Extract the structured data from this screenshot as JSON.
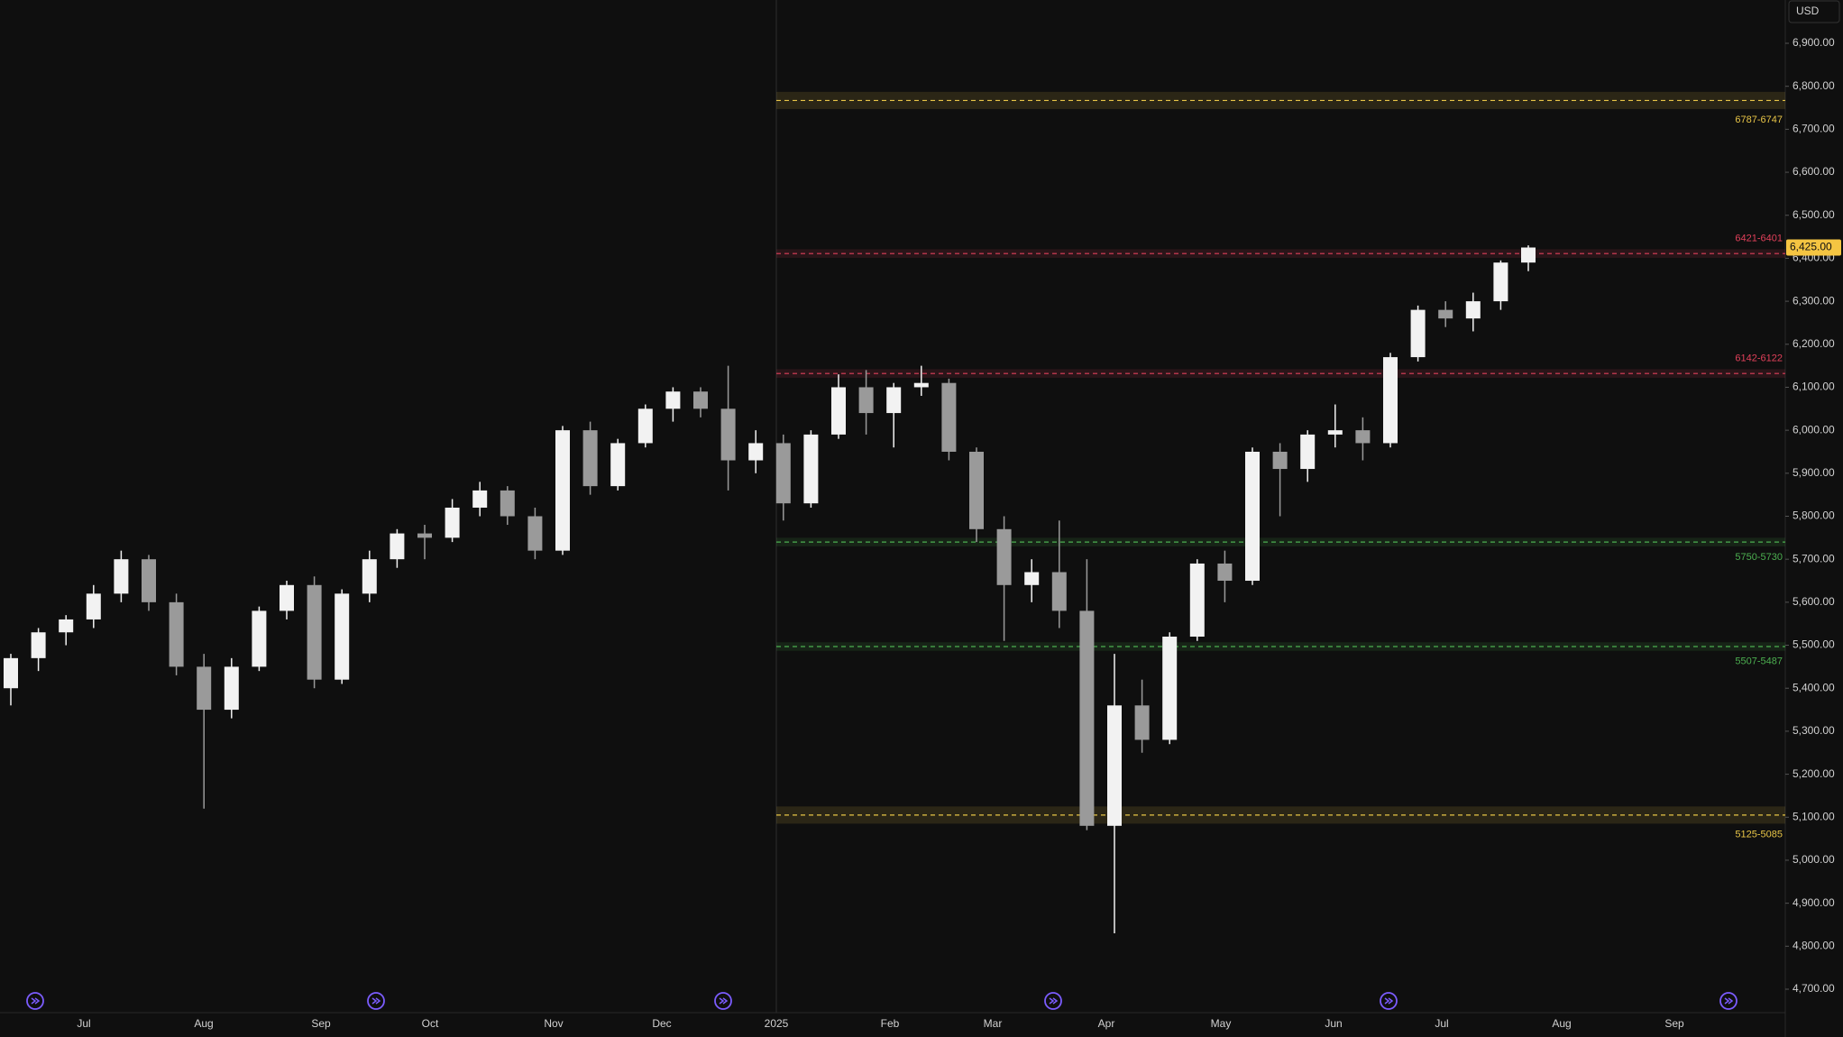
{
  "chart_data": {
    "type": "candlestick",
    "currency": "USD",
    "last_price": {
      "value": 6425,
      "label": "6,425.00"
    },
    "ylim": [
      4700,
      6900
    ],
    "yticks": [
      {
        "value": 4700,
        "label": "4,700.00"
      },
      {
        "value": 4800,
        "label": "4,800.00"
      },
      {
        "value": 4900,
        "label": "4,900.00"
      },
      {
        "value": 5000,
        "label": "5,000.00"
      },
      {
        "value": 5100,
        "label": "5,100.00"
      },
      {
        "value": 5200,
        "label": "5,200.00"
      },
      {
        "value": 5300,
        "label": "5,300.00"
      },
      {
        "value": 5400,
        "label": "5,400.00"
      },
      {
        "value": 5500,
        "label": "5,500.00"
      },
      {
        "value": 5600,
        "label": "5,600.00"
      },
      {
        "value": 5700,
        "label": "5,700.00"
      },
      {
        "value": 5800,
        "label": "5,800.00"
      },
      {
        "value": 5900,
        "label": "5,900.00"
      },
      {
        "value": 6000,
        "label": "6,000.00"
      },
      {
        "value": 6100,
        "label": "6,100.00"
      },
      {
        "value": 6200,
        "label": "6,200.00"
      },
      {
        "value": 6300,
        "label": "6,300.00"
      },
      {
        "value": 6400,
        "label": "6,400.00"
      },
      {
        "value": 6500,
        "label": "6,500.00"
      },
      {
        "value": 6600,
        "label": "6,600.00"
      },
      {
        "value": 6700,
        "label": "6,700.00"
      },
      {
        "value": 6800,
        "label": "6,800.00"
      },
      {
        "value": 6900,
        "label": "6,900.00"
      }
    ],
    "time_labels": [
      "Jul",
      "Aug",
      "Sep",
      "Oct",
      "Nov",
      "Dec",
      "2025",
      "Feb",
      "Mar",
      "Apr",
      "May",
      "Jun",
      "Jul",
      "Aug",
      "Sep"
    ],
    "up_color": "#f2f2f2",
    "down_color": "#9a9a9a",
    "candles": {
      "open": [
        5400,
        5470,
        5530,
        5560,
        5620,
        5700,
        5600,
        5450,
        5350,
        5450,
        5580,
        5640,
        5420,
        5620,
        5700,
        5760,
        5750,
        5820,
        5860,
        5800,
        5720,
        6000,
        5870,
        5970,
        6050,
        6090,
        6050,
        5930,
        5970,
        5830,
        5990,
        6100,
        6040,
        6100,
        6110,
        5950,
        5770,
        5640,
        5670,
        5580,
        5080,
        5360,
        5280,
        5520,
        5690,
        5650,
        5950,
        5910,
        5990,
        6000,
        5970,
        6170,
        6280,
        6260,
        6300,
        6390
      ],
      "high": [
        5480,
        5540,
        5570,
        5640,
        5720,
        5710,
        5620,
        5480,
        5470,
        5590,
        5650,
        5660,
        5630,
        5720,
        5770,
        5780,
        5840,
        5880,
        5870,
        5820,
        6010,
        6020,
        5980,
        6060,
        6100,
        6100,
        6150,
        6000,
        5990,
        6000,
        6130,
        6140,
        6110,
        6150,
        6120,
        5960,
        5800,
        5700,
        5790,
        5700,
        5480,
        5420,
        5530,
        5700,
        5720,
        5960,
        5970,
        6000,
        6060,
        6030,
        6180,
        6290,
        6300,
        6320,
        6395,
        6430
      ],
      "low": [
        5360,
        5440,
        5500,
        5540,
        5600,
        5580,
        5430,
        5120,
        5330,
        5440,
        5560,
        5400,
        5410,
        5600,
        5680,
        5700,
        5740,
        5800,
        5780,
        5700,
        5710,
        5850,
        5860,
        5960,
        6020,
        6030,
        5860,
        5900,
        5790,
        5820,
        5980,
        5990,
        5960,
        6080,
        5930,
        5740,
        5510,
        5600,
        5540,
        5070,
        4830,
        5250,
        5270,
        5510,
        5600,
        5640,
        5800,
        5880,
        5960,
        5930,
        5960,
        6160,
        6240,
        6230,
        6280,
        6370
      ],
      "close": [
        5470,
        5530,
        5560,
        5620,
        5700,
        5600,
        5450,
        5350,
        5450,
        5580,
        5640,
        5420,
        5620,
        5700,
        5760,
        5750,
        5820,
        5860,
        5800,
        5720,
        6000,
        5870,
        5970,
        6050,
        6090,
        6050,
        5930,
        5970,
        5830,
        5990,
        6100,
        6040,
        6100,
        6110,
        5950,
        5770,
        5640,
        5670,
        5580,
        5080,
        5360,
        5280,
        5520,
        5690,
        5650,
        5950,
        5910,
        5990,
        6000,
        5970,
        6170,
        6280,
        6260,
        6300,
        6390,
        6425
      ]
    },
    "zones": [
      {
        "label": "6787-6747",
        "high": 6787,
        "low": 6747,
        "color": "#e8c547"
      },
      {
        "label": "6421-6401",
        "high": 6421,
        "low": 6401,
        "color": "#e0405a"
      },
      {
        "label": "6142-6122",
        "high": 6142,
        "low": 6122,
        "color": "#e0405a"
      },
      {
        "label": "5750-5730",
        "high": 5750,
        "low": 5730,
        "color": "#4caf50"
      },
      {
        "label": "5507-5487",
        "high": 5507,
        "low": 5487,
        "color": "#4caf50"
      },
      {
        "label": "5125-5085",
        "high": 5125,
        "low": 5085,
        "color": "#e8c547"
      }
    ]
  }
}
